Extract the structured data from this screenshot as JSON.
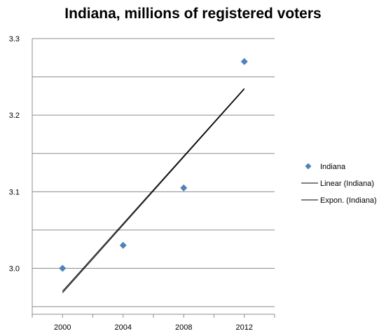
{
  "chart_data": {
    "type": "scatter",
    "title": "Indiana, millions of registered voters",
    "xlabel": "",
    "ylabel": "",
    "x_ticks": [
      "2000",
      "2004",
      "2008",
      "2012"
    ],
    "y_ticks": [
      "3.0",
      "3.1",
      "3.2",
      "3.3"
    ],
    "xlim": [
      1998,
      2014
    ],
    "ylim": [
      2.94,
      3.3
    ],
    "grid": "horizontal",
    "legend_position": "right",
    "series": [
      {
        "name": "Indiana",
        "marker": "diamond",
        "color": "#4f81bd",
        "points": [
          {
            "x": 2000,
            "y": 3.0
          },
          {
            "x": 2004,
            "y": 3.03
          },
          {
            "x": 2008,
            "y": 3.105
          },
          {
            "x": 2012,
            "y": 3.27
          }
        ]
      }
    ],
    "trendlines": [
      {
        "name": "Linear (Indiana)",
        "kind": "linear",
        "color": "#000000",
        "from": [
          2000,
          2.97
        ],
        "to": [
          2012,
          3.235
        ]
      },
      {
        "name": "Expon. (Indiana)",
        "kind": "exponential",
        "color": "#000000",
        "from": [
          2000,
          2.968
        ],
        "to": [
          2012,
          3.234
        ]
      }
    ]
  }
}
